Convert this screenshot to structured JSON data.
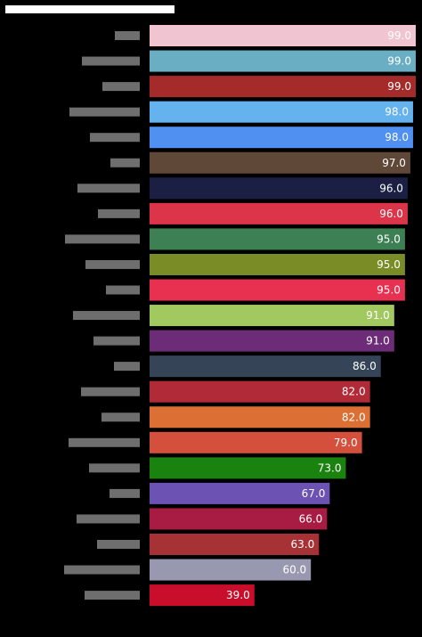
{
  "chart_data": {
    "type": "bar",
    "orientation": "horizontal",
    "title": "",
    "xlabel": "",
    "ylabel": "",
    "xlim": [
      0,
      100
    ],
    "grid": false,
    "legend": "none",
    "background": "#000000",
    "categories": [
      "",
      "",
      "",
      "",
      "",
      "",
      "",
      "",
      "",
      "",
      "",
      "",
      "",
      "",
      "",
      "",
      "",
      "",
      "",
      "",
      "",
      "",
      ""
    ],
    "values": [
      99.0,
      99.0,
      99.0,
      98.0,
      98.0,
      97.0,
      96.0,
      96.0,
      95.0,
      95.0,
      95.0,
      91.0,
      91.0,
      86.0,
      82.0,
      82.0,
      79.0,
      73.0,
      67.0,
      66.0,
      63.0,
      60.0,
      39.0
    ],
    "value_labels": [
      "99.0",
      "99.0",
      "99.0",
      "98.0",
      "98.0",
      "97.0",
      "96.0",
      "96.0",
      "95.0",
      "95.0",
      "95.0",
      "91.0",
      "91.0",
      "86.0",
      "82.0",
      "82.0",
      "79.0",
      "73.0",
      "67.0",
      "66.0",
      "63.0",
      "60.0",
      "39.0"
    ],
    "colors": [
      "#f0c4d0",
      "#6aaec4",
      "#a52a2a",
      "#64b2ee",
      "#5090f0",
      "#604838",
      "#1c1f44",
      "#dc3448",
      "#3c8054",
      "#7a8c26",
      "#e83050",
      "#a2c860",
      "#6c2c78",
      "#364458",
      "#b02a38",
      "#dc7034",
      "#d4503c",
      "#1a820e",
      "#6c52b2",
      "#a81c44",
      "#a63236",
      "#9898b0",
      "#c80e2a"
    ]
  }
}
